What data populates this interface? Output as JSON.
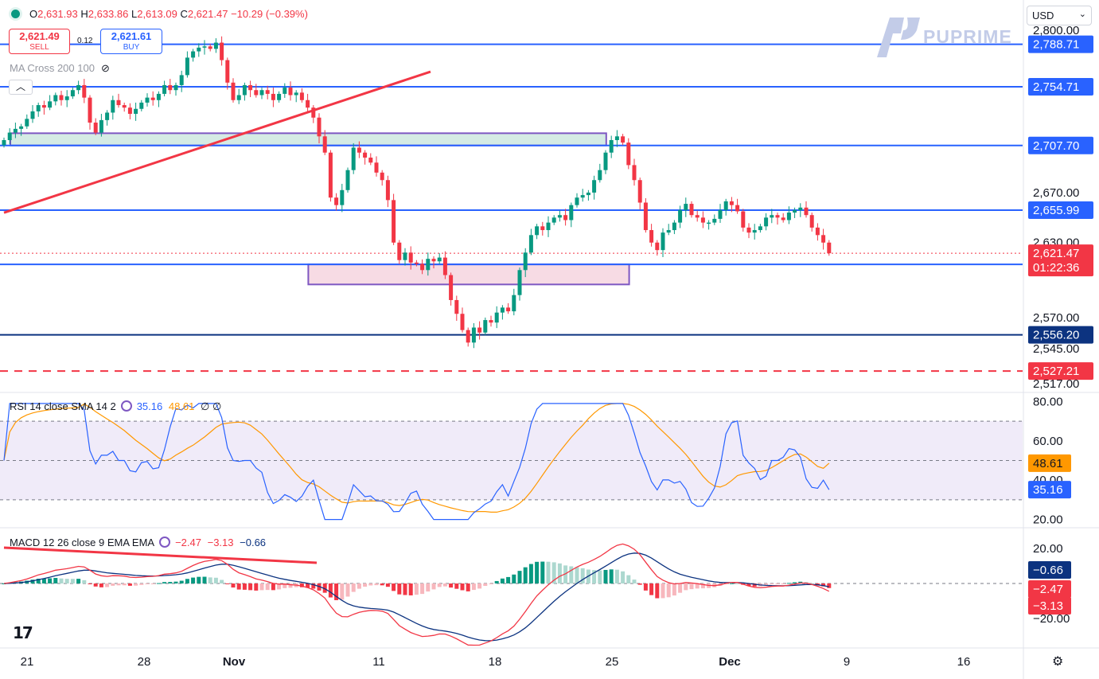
{
  "header": {
    "symbol_status_color": "#089981",
    "open_label": "O",
    "open": "2,631.93",
    "high_label": "H",
    "high": "2,633.86",
    "low_label": "L",
    "low": "2,613.09",
    "close_label": "C",
    "close": "2,621.47",
    "change": "−10.29 (−0.39%)"
  },
  "trade": {
    "sell_price": "2,621.49",
    "sell_label": "SELL",
    "spread": "0.12",
    "buy_price": "2,621.61",
    "buy_label": "BUY"
  },
  "currency_select": {
    "value": "USD"
  },
  "brand": {
    "name": "PUPRIME",
    "color": "#c3cce8"
  },
  "indicators": {
    "ma_label": "MA Cross 200 100",
    "ma_visibility_icon": "eye-crossed-icon",
    "rsi_label": "RSI 14 close SMA 14 2",
    "rsi_value": "35.16",
    "rsi_sma_value": "48.61",
    "rsi_extra": "∅ ∅",
    "macd_label": "MACD 12 26 close 9 EMA EMA",
    "macd_hist": "−2.47",
    "macd_line": "−3.13",
    "macd_signal": "−0.66"
  },
  "colors": {
    "up": "#089981",
    "down": "#f23645",
    "level": "#2962ff",
    "support_dark": "#0c3380",
    "trend": "#f23645",
    "rsi_line": "#2962ff",
    "rsi_sma": "#ff9800",
    "zone_resist": "#9c27b0"
  },
  "chart_data": {
    "type": "candlestick",
    "symbol": "XAUUSD",
    "price_axis_ticks": [
      "2,800.00",
      "2,670.00",
      "2,630.00",
      "2,570.00",
      "2,545.00",
      "2,517.00"
    ],
    "price_axis_tick_values": [
      2800,
      2670,
      2630,
      2570,
      2545,
      2517
    ],
    "price_range": [
      2512,
      2805
    ],
    "time_axis_ticks": [
      "21",
      "28",
      "Nov",
      "11",
      "18",
      "25",
      "Dec",
      "9",
      "16"
    ],
    "horizontal_levels": [
      {
        "value": 2788.71,
        "label": "2,788.71",
        "style": "solid",
        "color": "#2962ff"
      },
      {
        "value": 2754.71,
        "label": "2,754.71",
        "style": "solid",
        "color": "#2962ff"
      },
      {
        "value": 2707.7,
        "label": "2,707.70",
        "style": "solid",
        "color": "#2962ff"
      },
      {
        "value": 2655.99,
        "label": "2,655.99",
        "style": "solid",
        "color": "#2962ff"
      },
      {
        "value": 2612.58,
        "label": "2,612.58",
        "style": "solid",
        "color": "#2962ff"
      },
      {
        "value": 2556.2,
        "label": "2,556.20",
        "style": "solid",
        "color": "#0c3380"
      },
      {
        "value": 2527.21,
        "label": "2,527.21",
        "style": "dashed",
        "color": "#f23645"
      }
    ],
    "current_price": {
      "value": 2621.47,
      "label": "2,621.47",
      "countdown": "01:22:36"
    },
    "zones": [
      {
        "name": "resistance",
        "from_bar": 0,
        "to_bar": 104,
        "low": 2707.7,
        "high": 2717.5,
        "fill": "#d5ebe4",
        "border": "#7e57c2"
      },
      {
        "name": "support",
        "from_bar": 52,
        "to_bar": 108,
        "low": 2596.5,
        "high": 2612.58,
        "fill": "#f7dbe4",
        "border": "#7e57c2"
      }
    ],
    "trendline": {
      "from": [
        0,
        2673
      ],
      "to": [
        55,
        2740
      ]
    },
    "closes": [
      2712,
      2718,
      2721,
      2723,
      2729,
      2735,
      2740,
      2738,
      2743,
      2748,
      2744,
      2747,
      2752,
      2756,
      2746,
      2726,
      2718,
      2728,
      2734,
      2744,
      2740,
      2738,
      2733,
      2737,
      2742,
      2746,
      2744,
      2749,
      2756,
      2752,
      2756,
      2764,
      2778,
      2783,
      2786,
      2787,
      2785,
      2790,
      2776,
      2758,
      2744,
      2748,
      2756,
      2752,
      2748,
      2752,
      2749,
      2744,
      2749,
      2754,
      2748,
      2750,
      2744,
      2738,
      2730,
      2715,
      2702,
      2666,
      2660,
      2672,
      2688,
      2706,
      2702,
      2698,
      2694,
      2686,
      2680,
      2664,
      2630,
      2616,
      2622,
      2614,
      2613,
      2608,
      2617,
      2615,
      2618,
      2604,
      2584,
      2573,
      2560,
      2550,
      2562,
      2558,
      2568,
      2566,
      2574,
      2578,
      2575,
      2588,
      2608,
      2622,
      2636,
      2643,
      2640,
      2646,
      2650,
      2652,
      2648,
      2660,
      2666,
      2668,
      2670,
      2680,
      2688,
      2702,
      2712,
      2715,
      2710,
      2692,
      2680,
      2662,
      2640,
      2630,
      2624,
      2638,
      2640,
      2646,
      2656,
      2661,
      2652,
      2650,
      2646,
      2646,
      2649,
      2656,
      2663,
      2660,
      2655,
      2642,
      2638,
      2640,
      2643,
      2650,
      2652,
      2650,
      2648,
      2654,
      2656,
      2658,
      2652,
      2642,
      2636,
      2630,
      2621.47
    ],
    "rsi": {
      "range": [
        17,
        83
      ],
      "upper_band": 70,
      "lower_band": 30,
      "mid": 50,
      "ticks": [
        "80.00",
        "60.00",
        "40.00",
        "20.00"
      ],
      "current": "35.16",
      "sma_current": "48.61"
    },
    "macd": {
      "ticks": [
        "20.00",
        "−20.00"
      ],
      "macd_current": "−3.13",
      "signal_current": "−0.66",
      "hist_current": "−2.47"
    }
  }
}
